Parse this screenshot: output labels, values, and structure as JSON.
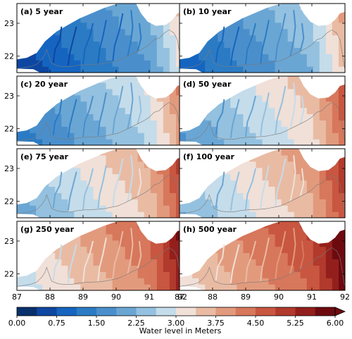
{
  "chart_data": {
    "type": "heatmap",
    "colorbar": {
      "label": "Water level in Meters",
      "min": 0,
      "max": 6,
      "ticks": [
        "0.00",
        "0.75",
        "1.50",
        "2.25",
        "3.00",
        "3.75",
        "4.50",
        "5.25",
        "6.00"
      ],
      "levels": 16,
      "extend": "max",
      "colors": [
        "#08306b",
        "#0d47a1",
        "#1565c0",
        "#2b7bc4",
        "#4a8fcc",
        "#6aa6d4",
        "#94c1df",
        "#c5dcea",
        "#f0e0d8",
        "#e9bba3",
        "#e29a7d",
        "#d7775b",
        "#c85640",
        "#b13a2c",
        "#931f1c",
        "#6d0a10"
      ]
    },
    "x_ticks": [
      "87",
      "88",
      "89",
      "90",
      "91",
      "92"
    ],
    "y_ticks": [
      "22",
      "23"
    ],
    "xlim": [
      87,
      92
    ],
    "ylim": [
      21.5,
      23.6
    ],
    "panels": [
      {
        "label": "(a) 5 year",
        "return_period": 5
      },
      {
        "label": "(b) 10 year",
        "return_period": 10
      },
      {
        "label": "(c) 20 year",
        "return_period": 20
      },
      {
        "label": "(d) 50 year",
        "return_period": 50
      },
      {
        "label": "(e) 75 year",
        "return_period": 75
      },
      {
        "label": "(f) 100 year",
        "return_period": 100
      },
      {
        "label": "(g) 250 year",
        "return_period": 250
      },
      {
        "label": "(h) 500 year",
        "return_period": 500
      }
    ]
  }
}
